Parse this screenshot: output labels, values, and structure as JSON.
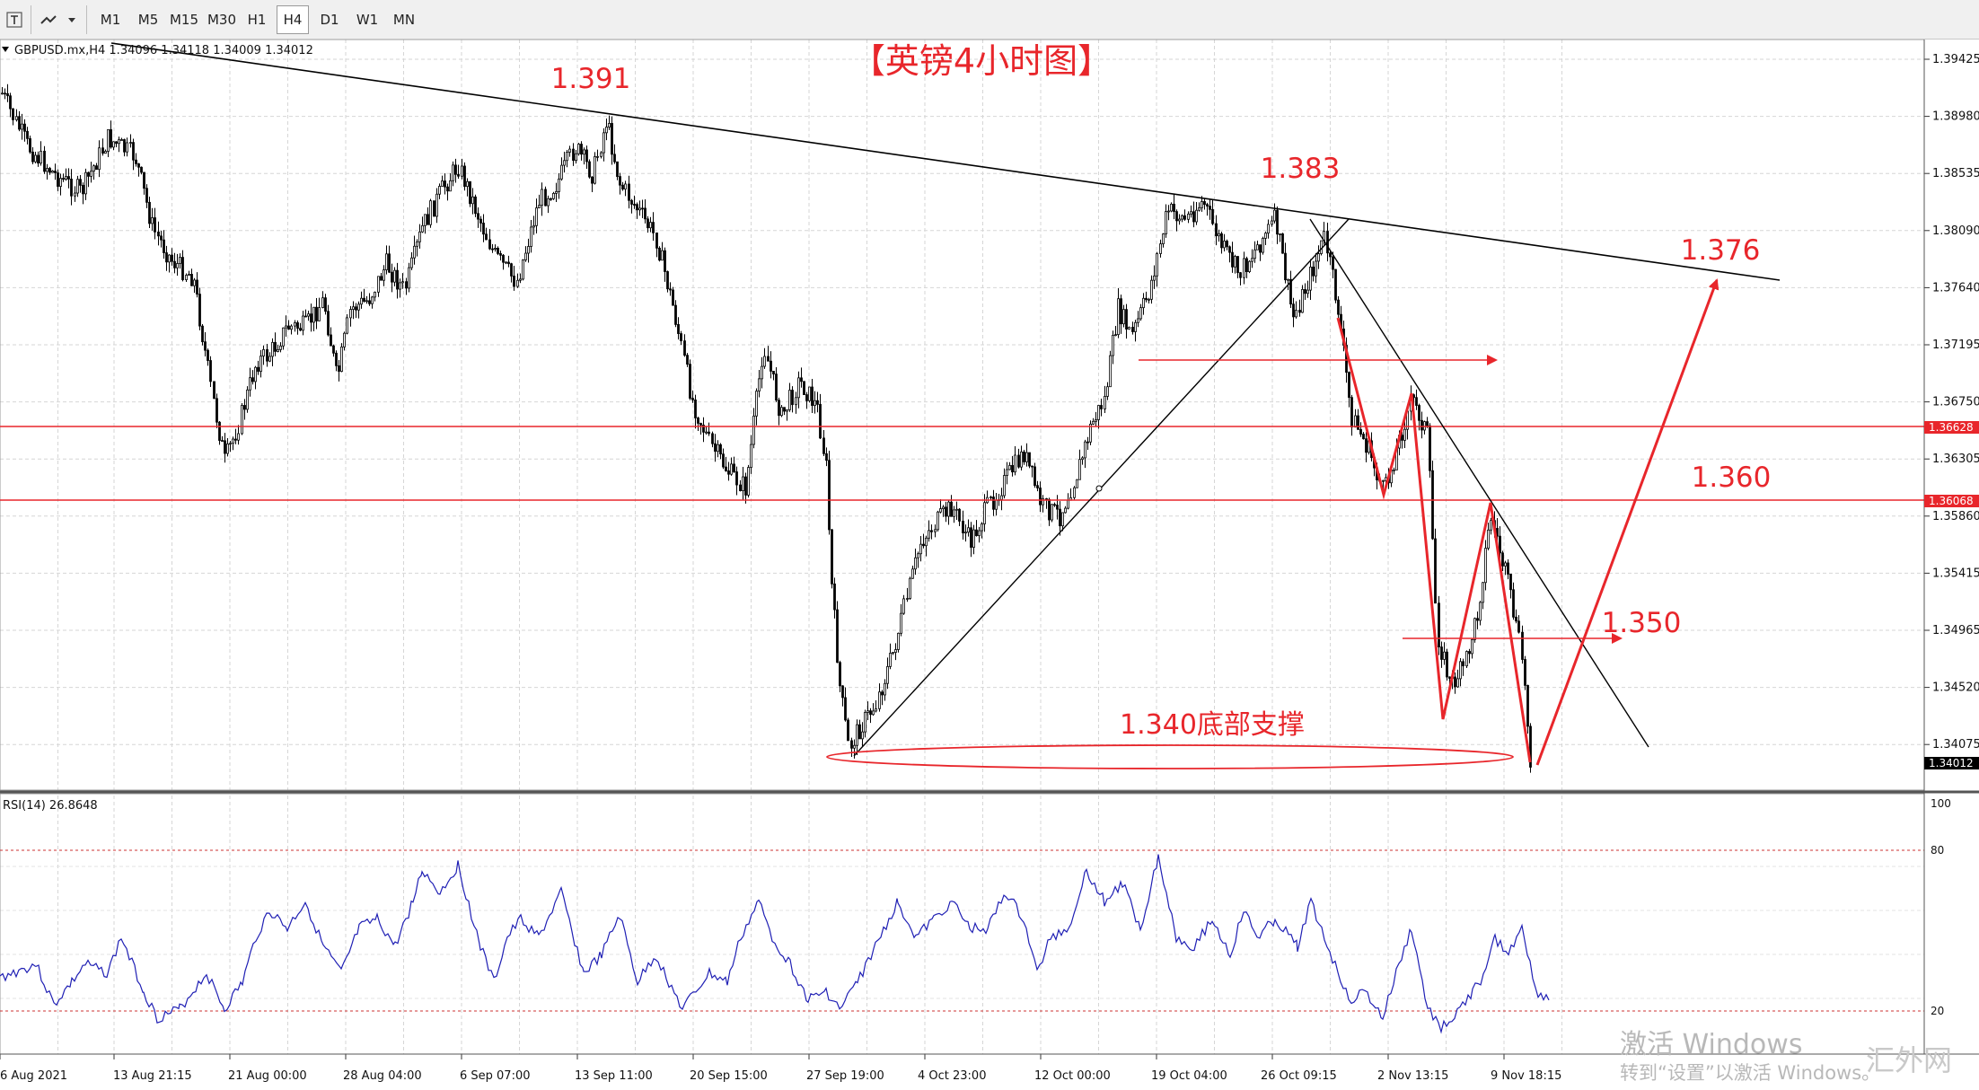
{
  "toolbar": {
    "timeframes": [
      "M1",
      "M5",
      "M15",
      "M30",
      "H1",
      "H4",
      "D1",
      "W1",
      "MN"
    ],
    "active": "H4"
  },
  "main_chart": {
    "symbol_header": "GBPUSD.mx,H4  1.34096 1.34118 1.34009 1.34012",
    "title": "【英镑4小时图】",
    "price_ticks": [
      "1.39425",
      "1.38980",
      "1.38535",
      "1.38090",
      "1.37640",
      "1.37195",
      "1.36750",
      "1.36305",
      "1.35860",
      "1.35415",
      "1.34965",
      "1.34520",
      "1.34075"
    ],
    "current_price_label": "1.34012",
    "red_level_labels": [
      "1.36628",
      "1.36068"
    ],
    "annotations": {
      "peak_1": "1.391",
      "peak_2": "1.383",
      "target_high": "1.376",
      "level_360": "1.360",
      "level_350": "1.350",
      "support": "1.340底部支撑"
    }
  },
  "rsi": {
    "label": "RSI(14) 26.8648",
    "ticks": [
      "100",
      "80",
      "20"
    ]
  },
  "time_axis": [
    "6 Aug 2021",
    "13 Aug 21:15",
    "21 Aug 00:00",
    "28 Aug 04:00",
    "6 Sep 07:00",
    "13 Sep 11:00",
    "20 Sep 15:00",
    "27 Sep 19:00",
    "4 Oct 23:00",
    "12 Oct 00:00",
    "19 Oct 04:00",
    "26 Oct 09:15",
    "2 Nov 13:15",
    "9 Nov 18:15"
  ],
  "watermark": {
    "line1": "激活 Windows",
    "line2": "转到“设置”以激活 Windows。",
    "corner": "汇外网"
  },
  "colors": {
    "annotation_red": "#e8262b",
    "rsi_line": "#1f1fb4",
    "candle": "#000000",
    "grid": "#d6d6d6"
  }
}
